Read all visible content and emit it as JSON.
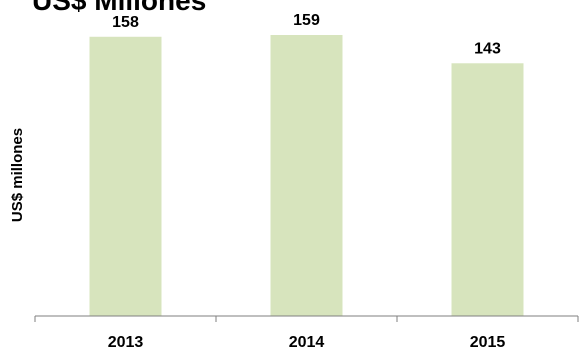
{
  "chart_data": {
    "type": "bar",
    "title": "US$ Millones",
    "ylabel": "US$ millones",
    "xlabel": "",
    "categories": [
      "2013",
      "2014",
      "2015"
    ],
    "values": [
      158,
      159,
      143
    ],
    "data_labels": [
      "158",
      "159",
      "143"
    ],
    "bar_color": "#d7e4bd",
    "axis_color": "#7f7f7f",
    "grid": false,
    "legend": "none"
  }
}
